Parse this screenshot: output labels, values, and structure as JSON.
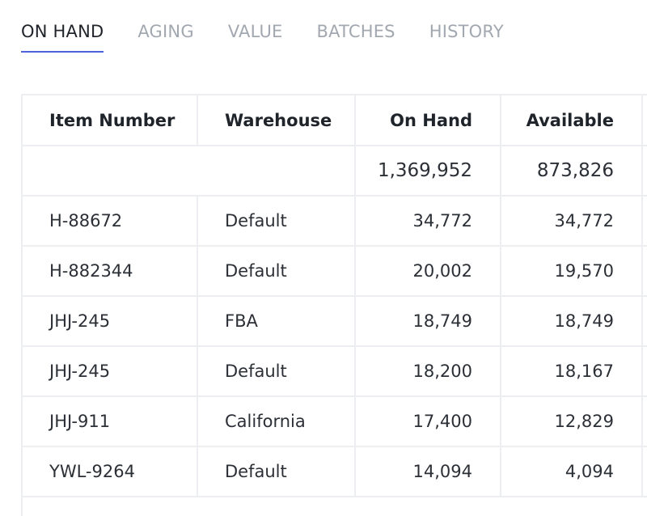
{
  "tabs": [
    {
      "label": "ON HAND",
      "active": true
    },
    {
      "label": "AGING",
      "active": false
    },
    {
      "label": "VALUE",
      "active": false
    },
    {
      "label": "BATCHES",
      "active": false
    },
    {
      "label": "HISTORY",
      "active": false
    }
  ],
  "table": {
    "columns": [
      "Item Number",
      "Warehouse",
      "On Hand",
      "Available"
    ],
    "totals": {
      "on_hand": "1,369,952",
      "available": "873,826"
    },
    "rows": [
      {
        "item": "H-88672",
        "warehouse": "Default",
        "on_hand": "34,772",
        "available": "34,772"
      },
      {
        "item": "H-882344",
        "warehouse": "Default",
        "on_hand": "20,002",
        "available": "19,570"
      },
      {
        "item": "JHJ-245",
        "warehouse": "FBA",
        "on_hand": "18,749",
        "available": "18,749"
      },
      {
        "item": "JHJ-245",
        "warehouse": "Default",
        "on_hand": "18,200",
        "available": "18,167"
      },
      {
        "item": "JHJ-911",
        "warehouse": "California",
        "on_hand": "17,400",
        "available": "12,829"
      },
      {
        "item": "YWL-9264",
        "warehouse": "Default",
        "on_hand": "14,094",
        "available": "4,094"
      }
    ]
  }
}
